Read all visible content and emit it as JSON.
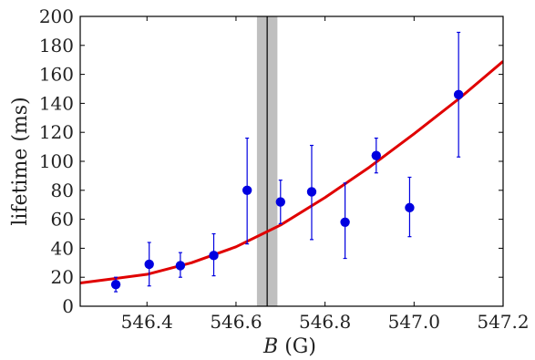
{
  "chart_data": {
    "type": "scatter",
    "title": "",
    "xlabel_var": "B",
    "xlabel_unit": " (G)",
    "ylabel": "lifetime (ms)",
    "xlim": [
      546.25,
      547.2
    ],
    "ylim": [
      0,
      200
    ],
    "x_ticks": [
      546.4,
      546.6,
      546.8,
      547.0,
      547.2
    ],
    "x_tick_labels": [
      "546.4",
      "546.6",
      "546.8",
      "547.0",
      "547.2"
    ],
    "y_ticks": [
      0,
      20,
      40,
      60,
      80,
      100,
      120,
      140,
      160,
      180,
      200
    ],
    "y_tick_labels": [
      "0",
      "20",
      "40",
      "60",
      "80",
      "100",
      "120",
      "140",
      "160",
      "180",
      "200"
    ],
    "grid": false,
    "points": [
      {
        "x": 546.33,
        "y": 15,
        "yerr_low": 10,
        "yerr_high": 20
      },
      {
        "x": 546.405,
        "y": 29,
        "yerr_low": 14,
        "yerr_high": 44
      },
      {
        "x": 546.475,
        "y": 28,
        "yerr_low": 20,
        "yerr_high": 37
      },
      {
        "x": 546.55,
        "y": 35,
        "yerr_low": 21,
        "yerr_high": 50
      },
      {
        "x": 546.625,
        "y": 80,
        "yerr_low": 43,
        "yerr_high": 116
      },
      {
        "x": 546.7,
        "y": 72,
        "yerr_low": 57,
        "yerr_high": 87
      },
      {
        "x": 546.77,
        "y": 79,
        "yerr_low": 46,
        "yerr_high": 111
      },
      {
        "x": 546.845,
        "y": 58,
        "yerr_low": 33,
        "yerr_high": 85
      },
      {
        "x": 546.915,
        "y": 104,
        "yerr_low": 92,
        "yerr_high": 116
      },
      {
        "x": 546.99,
        "y": 68,
        "yerr_low": 48,
        "yerr_high": 89
      },
      {
        "x": 547.1,
        "y": 146,
        "yerr_low": 103,
        "yerr_high": 189
      }
    ],
    "fit_curve": [
      {
        "x": 546.25,
        "y": 16
      },
      {
        "x": 546.3,
        "y": 18
      },
      {
        "x": 546.4,
        "y": 22
      },
      {
        "x": 546.5,
        "y": 30
      },
      {
        "x": 546.6,
        "y": 41
      },
      {
        "x": 546.7,
        "y": 56
      },
      {
        "x": 546.8,
        "y": 75
      },
      {
        "x": 546.9,
        "y": 96
      },
      {
        "x": 547.0,
        "y": 119
      },
      {
        "x": 547.1,
        "y": 143
      },
      {
        "x": 547.2,
        "y": 169
      }
    ],
    "band": {
      "x_start": 546.647,
      "x_end": 546.693,
      "center": 546.67
    },
    "colors": {
      "points": "#0000e0",
      "fit": "#e00000",
      "band": "#bfbfbf",
      "center_line": "#000000",
      "axes": "#000000"
    }
  }
}
